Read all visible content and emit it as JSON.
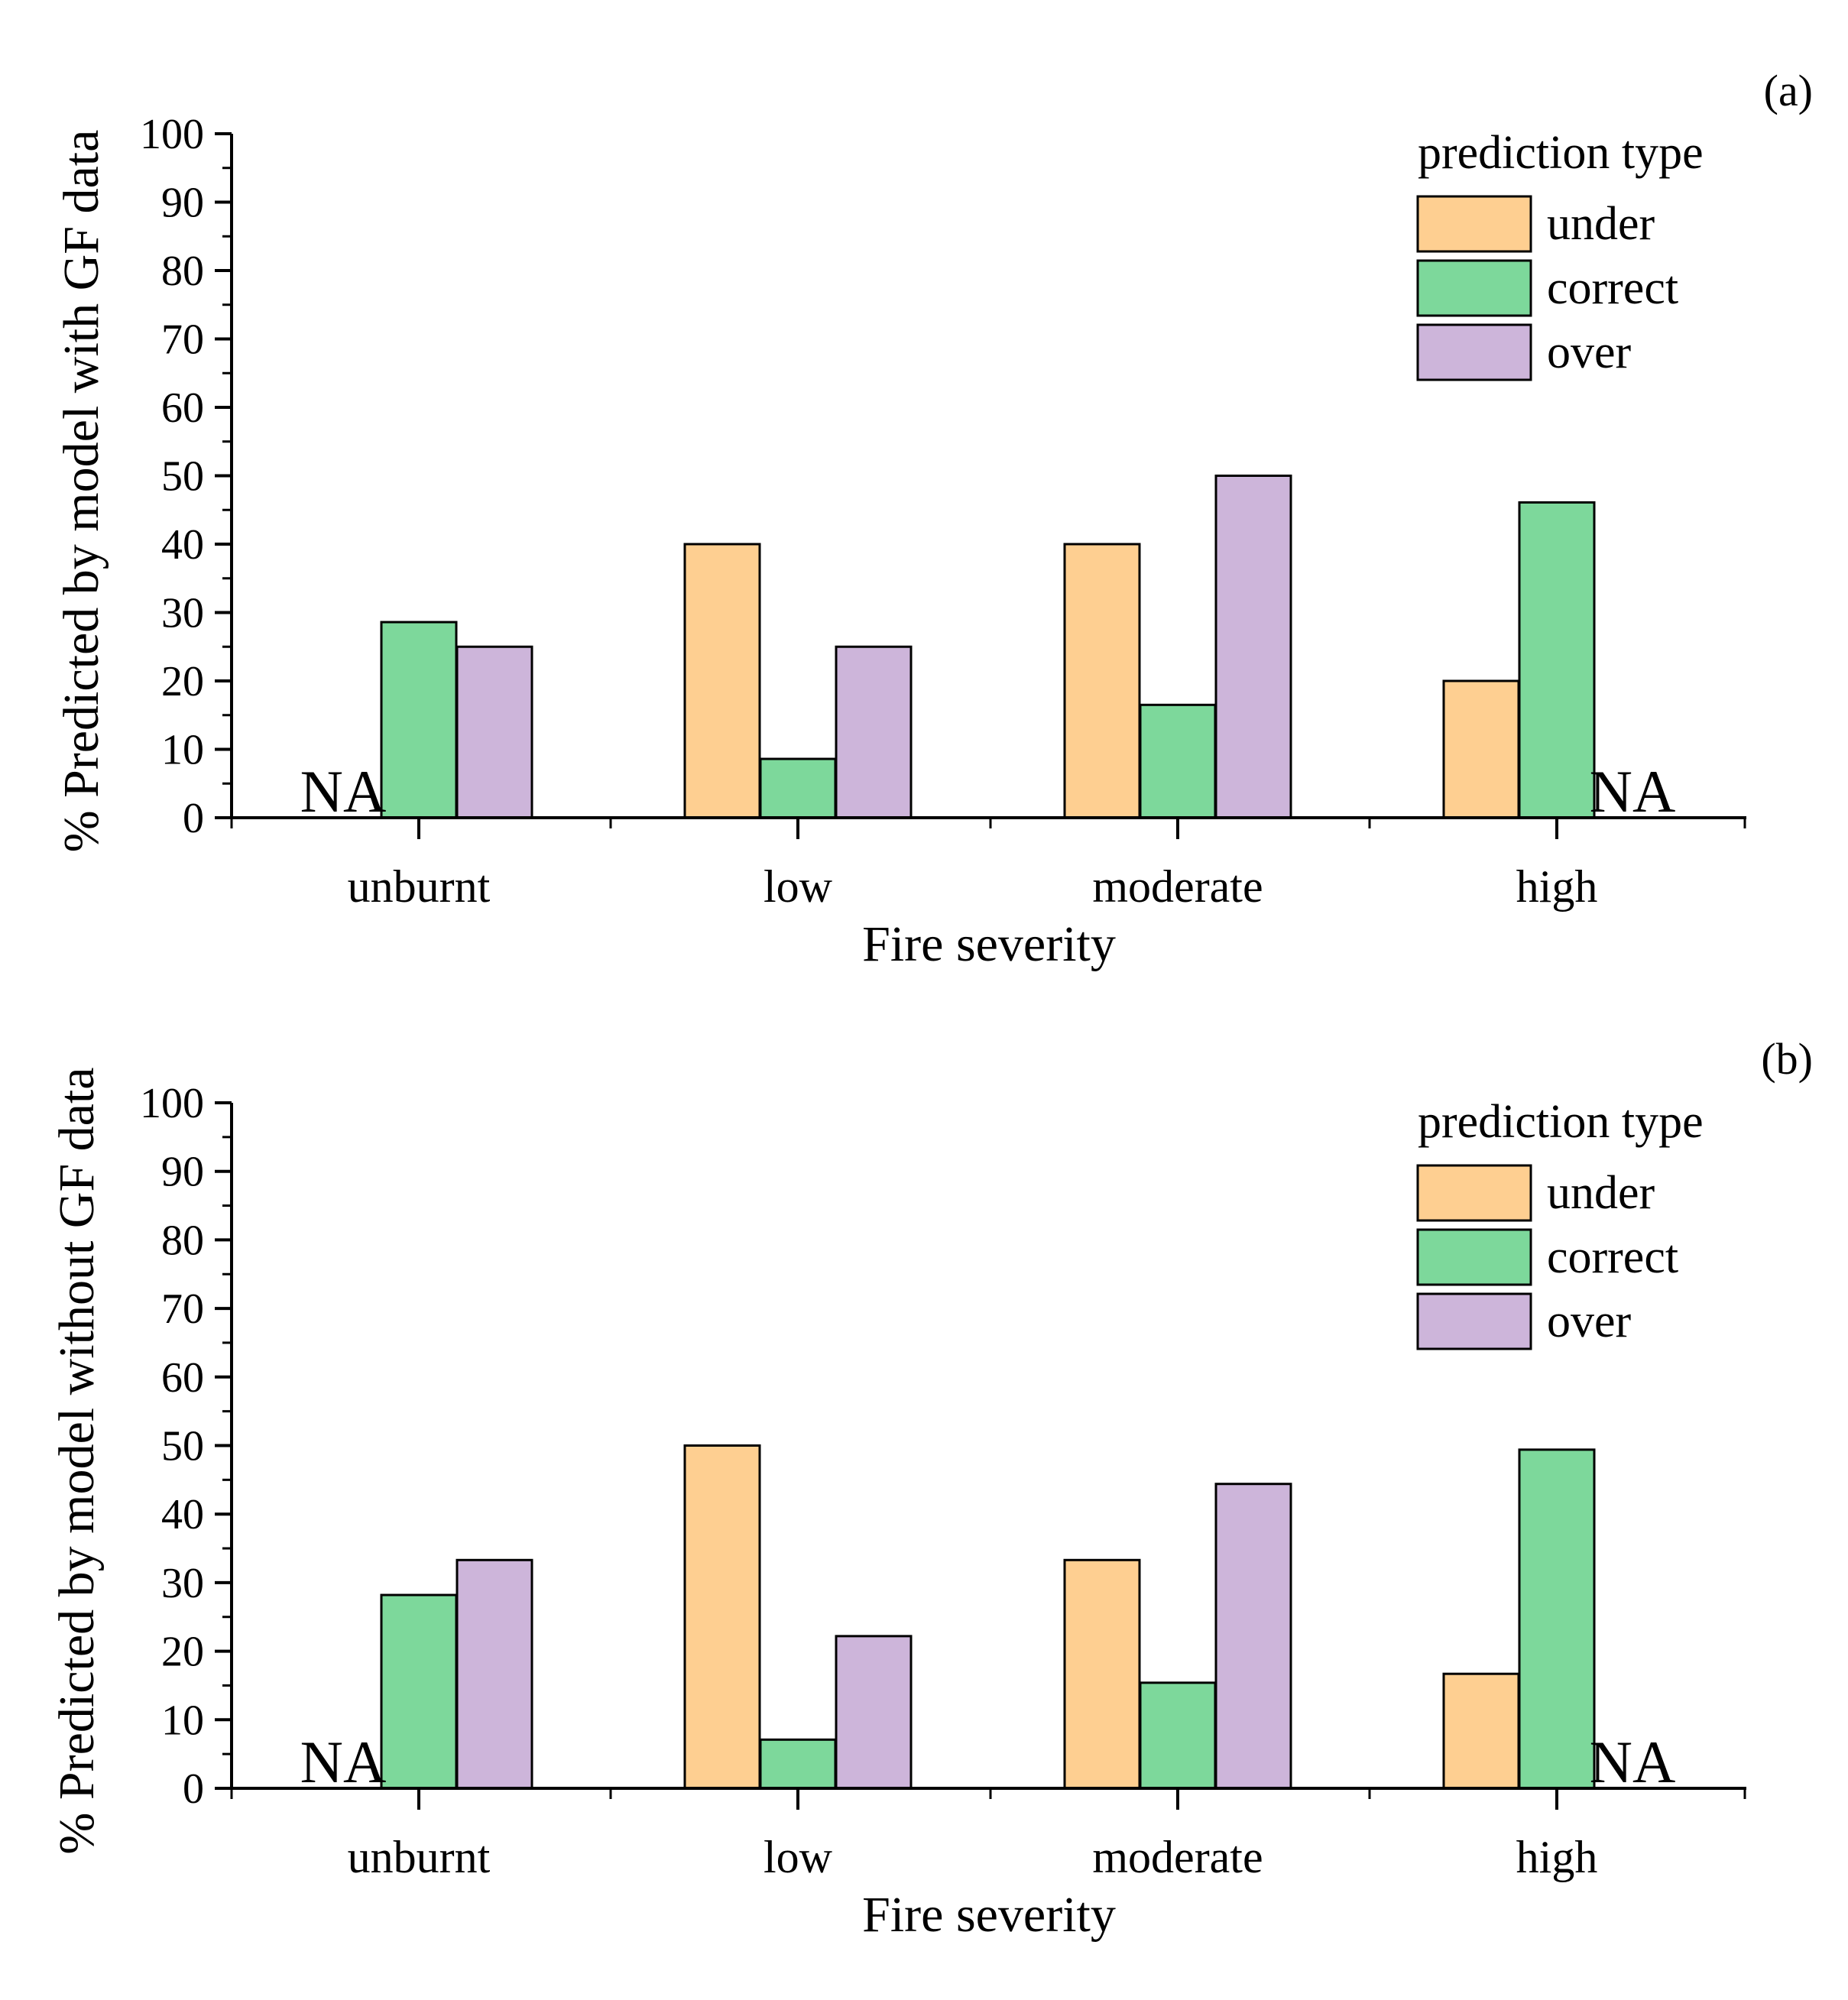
{
  "chart_data": [
    {
      "type": "bar",
      "panel_label": "(a)",
      "categories": [
        "unburnt",
        "low",
        "moderate",
        "high"
      ],
      "series": [
        {
          "name": "under",
          "color": "#FECF91",
          "values": [
            null,
            40,
            40,
            20
          ]
        },
        {
          "name": "correct",
          "color": "#7DD89B",
          "values": [
            28.6,
            8.6,
            16.5,
            46.1
          ]
        },
        {
          "name": "over",
          "color": "#CDB5DA",
          "values": [
            25,
            25,
            50,
            null
          ]
        }
      ],
      "na_labels": [
        {
          "category": "unburnt",
          "series": "under",
          "text": "NA"
        },
        {
          "category": "high",
          "series": "over",
          "text": "NA"
        }
      ],
      "xlabel": "Fire severity",
      "ylabel": "% Predicted by model with GF data",
      "ylim": [
        0,
        100
      ],
      "yticks": [
        "0",
        "10",
        "20",
        "30",
        "40",
        "50",
        "60",
        "70",
        "80",
        "90",
        "100"
      ],
      "legend": {
        "title": "prediction type",
        "position": "top-right"
      },
      "grid": false
    },
    {
      "type": "bar",
      "panel_label": "(b)",
      "categories": [
        "unburnt",
        "low",
        "moderate",
        "high"
      ],
      "series": [
        {
          "name": "under",
          "color": "#FECF91",
          "values": [
            null,
            50,
            33.3,
            16.7
          ]
        },
        {
          "name": "correct",
          "color": "#7DD89B",
          "values": [
            28.2,
            7.1,
            15.4,
            49.4
          ]
        },
        {
          "name": "over",
          "color": "#CDB5DA",
          "values": [
            33.3,
            22.2,
            44.4,
            null
          ]
        }
      ],
      "na_labels": [
        {
          "category": "unburnt",
          "series": "under",
          "text": "NA"
        },
        {
          "category": "high",
          "series": "over",
          "text": "NA"
        }
      ],
      "xlabel": "Fire severity",
      "ylabel": "% Predicted by model without GF data",
      "ylim": [
        0,
        100
      ],
      "yticks": [
        "0",
        "10",
        "20",
        "30",
        "40",
        "50",
        "60",
        "70",
        "80",
        "90",
        "100"
      ],
      "legend": {
        "title": "prediction type",
        "position": "top-right"
      },
      "grid": false
    }
  ]
}
